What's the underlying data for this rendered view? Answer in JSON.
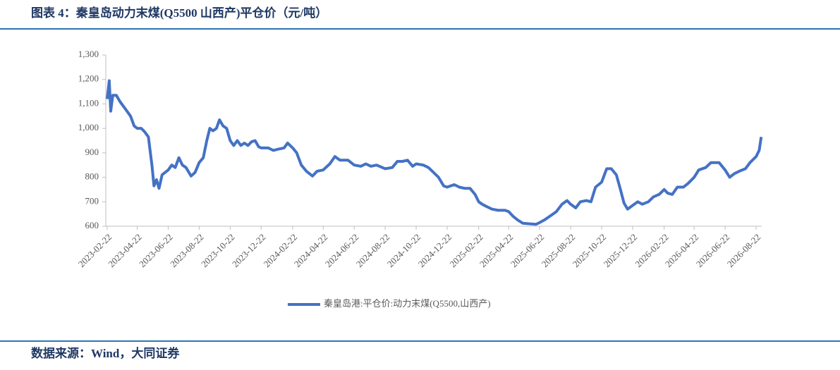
{
  "title": "图表 4：秦皇岛动力末煤(Q5500 山西产)平仓价（元/吨）",
  "source": "数据来源：Wind，大同证券",
  "chart_data": {
    "type": "line",
    "x": [
      "2023-02-22",
      "2023-02-26",
      "2023-03-01",
      "2023-03-05",
      "2023-03-12",
      "2023-03-19",
      "2023-03-26",
      "2023-04-02",
      "2023-04-09",
      "2023-04-16",
      "2023-04-22",
      "2023-04-30",
      "2023-05-07",
      "2023-05-14",
      "2023-05-21",
      "2023-05-25",
      "2023-05-30",
      "2023-06-04",
      "2023-06-10",
      "2023-06-22",
      "2023-06-29",
      "2023-07-06",
      "2023-07-13",
      "2023-07-20",
      "2023-07-27",
      "2023-08-06",
      "2023-08-14",
      "2023-08-22",
      "2023-08-30",
      "2023-09-06",
      "2023-09-12",
      "2023-09-18",
      "2023-09-25",
      "2023-10-01",
      "2023-10-08",
      "2023-10-15",
      "2023-10-22",
      "2023-10-29",
      "2023-11-05",
      "2023-11-12",
      "2023-11-19",
      "2023-11-26",
      "2023-12-03",
      "2023-12-10",
      "2023-12-17",
      "2023-12-22",
      "2024-01-05",
      "2024-01-15",
      "2024-01-25",
      "2024-02-05",
      "2024-02-12",
      "2024-02-22",
      "2024-03-01",
      "2024-03-10",
      "2024-03-20",
      "2024-04-01",
      "2024-04-10",
      "2024-04-22",
      "2024-05-05",
      "2024-05-15",
      "2024-05-25",
      "2024-06-10",
      "2024-06-22",
      "2024-07-05",
      "2024-07-15",
      "2024-07-25",
      "2024-08-05",
      "2024-08-22",
      "2024-09-05",
      "2024-09-15",
      "2024-09-25",
      "2024-10-05",
      "2024-10-15",
      "2024-10-22",
      "2024-11-05",
      "2024-11-15",
      "2024-11-25",
      "2024-12-05",
      "2024-12-15",
      "2024-12-22",
      "2025-01-05",
      "2025-01-15",
      "2025-01-25",
      "2025-02-05",
      "2025-02-15",
      "2025-02-22",
      "2025-03-01",
      "2025-03-10",
      "2025-03-20",
      "2025-04-01",
      "2025-04-15",
      "2025-04-22",
      "2025-05-01",
      "2025-05-10",
      "2025-05-20",
      "2025-06-01",
      "2025-06-15",
      "2025-06-22",
      "2025-07-01",
      "2025-07-15",
      "2025-07-25",
      "2025-08-05",
      "2025-08-15",
      "2025-08-22",
      "2025-09-01",
      "2025-09-10",
      "2025-09-22",
      "2025-10-01",
      "2025-10-10",
      "2025-10-22",
      "2025-11-01",
      "2025-11-10",
      "2025-11-20",
      "2025-11-28",
      "2025-12-05",
      "2025-12-12",
      "2025-12-22",
      "2026-01-01",
      "2026-01-10",
      "2026-01-22",
      "2026-02-01",
      "2026-02-12",
      "2026-02-22",
      "2026-03-01",
      "2026-03-10",
      "2026-03-20",
      "2026-04-01",
      "2026-04-10",
      "2026-04-22",
      "2026-05-01",
      "2026-05-15",
      "2026-05-25",
      "2026-06-10",
      "2026-06-22",
      "2026-07-01",
      "2026-07-10",
      "2026-07-20",
      "2026-08-01",
      "2026-08-10",
      "2026-08-22",
      "2026-08-28",
      "2026-09-01"
    ],
    "series": [
      {
        "name": "秦皇岛港:平仓价:动力末煤(Q5500,山西产)",
        "color": "#4472c4",
        "values": [
          1120,
          1195,
          1070,
          1135,
          1135,
          1110,
          1090,
          1070,
          1050,
          1010,
          1000,
          1000,
          985,
          965,
          850,
          765,
          790,
          755,
          810,
          830,
          850,
          840,
          880,
          850,
          840,
          805,
          820,
          860,
          880,
          950,
          1000,
          990,
          1000,
          1035,
          1010,
          1000,
          950,
          930,
          950,
          930,
          940,
          930,
          945,
          950,
          925,
          920,
          920,
          910,
          915,
          920,
          940,
          920,
          900,
          850,
          825,
          805,
          825,
          830,
          855,
          885,
          870,
          870,
          850,
          845,
          855,
          845,
          850,
          835,
          840,
          865,
          865,
          870,
          845,
          855,
          850,
          840,
          820,
          800,
          765,
          760,
          770,
          760,
          755,
          755,
          730,
          700,
          690,
          680,
          670,
          665,
          665,
          660,
          640,
          625,
          612,
          610,
          608,
          615,
          625,
          645,
          660,
          690,
          705,
          690,
          675,
          700,
          705,
          700,
          760,
          780,
          835,
          835,
          810,
          750,
          695,
          670,
          685,
          700,
          690,
          700,
          720,
          730,
          750,
          735,
          730,
          760,
          760,
          775,
          800,
          830,
          840,
          860,
          860,
          830,
          800,
          815,
          825,
          835,
          860,
          885,
          910,
          965
        ]
      }
    ],
    "xlim": [
      "2023-02-22",
      "2026-09-02"
    ],
    "xticks": [
      "2023-02-22",
      "2023-04-22",
      "2023-06-22",
      "2023-08-22",
      "2023-10-22",
      "2023-12-22",
      "2024-02-22",
      "2024-04-22",
      "2024-06-22",
      "2024-08-22",
      "2024-10-22",
      "2024-12-22",
      "2025-02-22",
      "2025-04-22",
      "2025-06-22",
      "2025-08-22",
      "2025-10-22",
      "2025-12-22",
      "2026-02-22",
      "2026-04-22",
      "2026-06-22",
      "2026-08-22"
    ],
    "ylim": [
      600,
      1300
    ],
    "yticks": [
      600,
      700,
      800,
      900,
      {
        "value": 1000,
        "label": "1,000"
      },
      {
        "value": 1100,
        "label": "1,100"
      },
      {
        "value": 1200,
        "label": "1,200"
      },
      {
        "value": 1300,
        "label": "1,300"
      }
    ],
    "legend": "bottom"
  }
}
